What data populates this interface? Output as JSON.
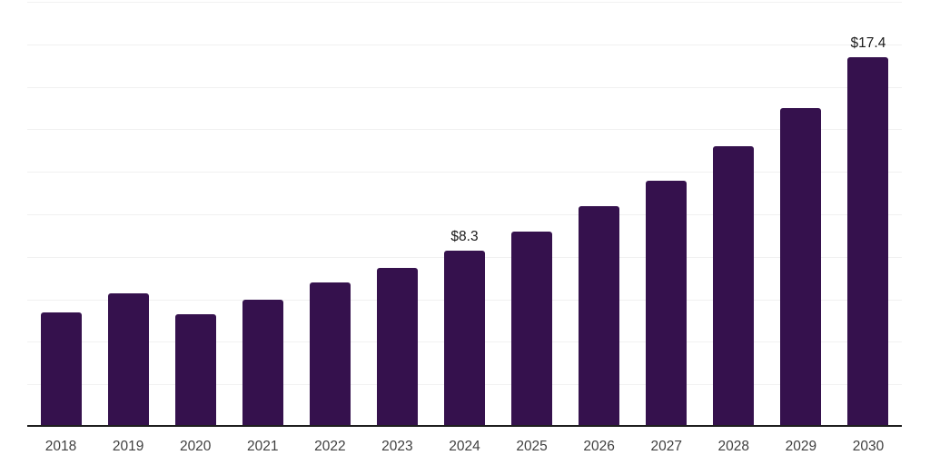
{
  "chart_data": {
    "type": "bar",
    "title": "",
    "xlabel": "",
    "ylabel": "",
    "categories": [
      "2018",
      "2019",
      "2020",
      "2021",
      "2022",
      "2023",
      "2024",
      "2025",
      "2026",
      "2027",
      "2028",
      "2029",
      "2030"
    ],
    "values": [
      5.4,
      6.3,
      5.3,
      6.0,
      6.8,
      7.5,
      8.3,
      9.2,
      10.4,
      11.6,
      13.2,
      15.0,
      17.4
    ],
    "data_labels": [
      "",
      "",
      "",
      "",
      "",
      "",
      "$8.3",
      "",
      "",
      "",
      "",
      "",
      "$17.4"
    ],
    "ylim": [
      0,
      20
    ],
    "gridline_step": 2,
    "grid": "horizontal-only",
    "legend_position": "none",
    "y_axis_labels_visible": false,
    "colors": {
      "bar": "#35114D",
      "grid": "#f1f1f1",
      "axis": "#1f1f1f",
      "tick_label": "#404040",
      "data_label": "#1a1a1a",
      "background": "#ffffff"
    }
  }
}
